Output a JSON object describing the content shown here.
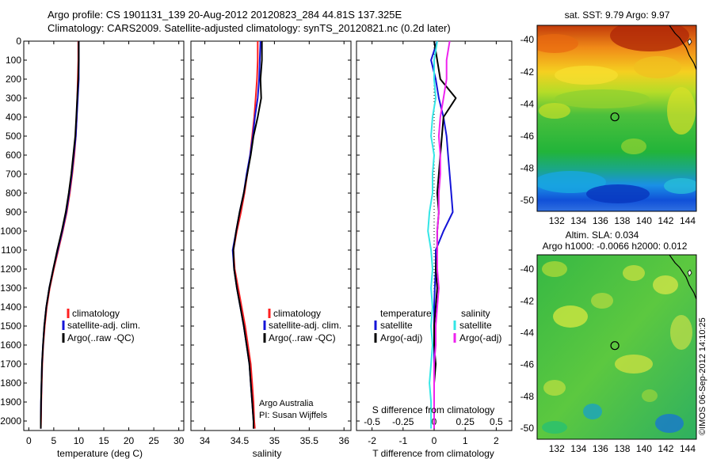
{
  "title_line1": "Argo profile: CS 1901131_139 20-Aug-2012 20120823_284 44.81S 137.325E",
  "title_line2": "Climatology: CARS2009. Satellite-adjusted climatology: synTS_20120821.nc (0.2d later)",
  "colors": {
    "clim": "#ff2020",
    "sat": "#1414d8",
    "argo": "#000000",
    "sal_sat": "#33e6e6",
    "sal_argo": "#ee22ee"
  },
  "chart_data": [
    {
      "type": "line",
      "title": "",
      "xlabel": "temperature (deg C)",
      "ylabel": "",
      "xlim": [
        -1,
        31
      ],
      "ylim": [
        2050,
        0
      ],
      "xticks": [
        "0",
        "5",
        "10",
        "15",
        "20",
        "25",
        "30"
      ],
      "xtick_values": [
        0,
        5,
        10,
        15,
        20,
        25,
        30
      ],
      "yticks": [
        "0",
        "100",
        "200",
        "300",
        "400",
        "500",
        "600",
        "700",
        "800",
        "900",
        "1000",
        "1100",
        "1200",
        "1300",
        "1400",
        "1500",
        "1600",
        "1700",
        "1800",
        "1900",
        "2000"
      ],
      "legend": [
        "climatology",
        "satellite-adj. clim.",
        "Argo(..raw -QC)"
      ],
      "series": [
        {
          "name": "climatology",
          "color_key": "clim",
          "x": [
            9.9,
            9.9,
            9.8,
            9.7,
            9.6,
            9.4,
            9.1,
            8.7,
            8.2,
            7.6,
            6.8,
            5.9,
            5.0,
            4.2,
            3.6,
            3.2,
            2.9,
            2.7,
            2.6,
            2.5,
            2.45,
            2.4
          ],
          "y": [
            0,
            100,
            200,
            300,
            400,
            500,
            600,
            700,
            800,
            900,
            1000,
            1100,
            1200,
            1300,
            1400,
            1500,
            1600,
            1700,
            1800,
            1900,
            2000,
            2040
          ]
        },
        {
          "name": "satellite-adj. clim.",
          "color_key": "sat",
          "x": [
            10.0,
            10.0,
            10.0,
            9.8,
            9.6,
            9.4,
            9.0,
            8.6,
            8.1,
            7.5,
            6.7,
            5.8,
            4.9,
            4.1,
            3.5,
            3.1,
            2.85,
            2.65,
            2.55,
            2.45,
            2.4,
            2.4
          ],
          "y": [
            0,
            100,
            200,
            300,
            400,
            500,
            600,
            700,
            800,
            900,
            1000,
            1100,
            1200,
            1300,
            1400,
            1500,
            1600,
            1700,
            1800,
            1900,
            2000,
            2040
          ]
        },
        {
          "name": "Argo(..raw -QC)",
          "color_key": "argo",
          "x": [
            10.0,
            10.0,
            9.9,
            9.7,
            9.5,
            9.3,
            8.9,
            8.5,
            8.0,
            7.4,
            6.6,
            5.7,
            4.9,
            4.1,
            3.5,
            3.1,
            2.85,
            2.65,
            2.55,
            2.45,
            2.4,
            2.4
          ],
          "y": [
            0,
            100,
            200,
            300,
            400,
            500,
            600,
            700,
            800,
            900,
            1000,
            1100,
            1200,
            1300,
            1400,
            1500,
            1600,
            1700,
            1800,
            1900,
            2000,
            2040
          ]
        }
      ]
    },
    {
      "type": "line",
      "title": "",
      "xlabel": "salinity",
      "ylabel": "",
      "xlim": [
        33.8,
        36.1
      ],
      "ylim": [
        2050,
        0
      ],
      "xticks": [
        "34",
        "34.5",
        "35",
        "35.5",
        "36"
      ],
      "xtick_values": [
        34,
        34.5,
        35,
        35.5,
        36
      ],
      "legend": [
        "climatology",
        "satellite-adj. clim.",
        "Argo(..raw -QC)"
      ],
      "annotation_line1": "Argo Australia",
      "annotation_line2": "PI: Susan Wijffels",
      "series": [
        {
          "name": "climatology",
          "color_key": "clim",
          "x": [
            34.76,
            34.76,
            34.75,
            34.73,
            34.71,
            34.68,
            34.65,
            34.61,
            34.57,
            34.52,
            34.46,
            34.41,
            34.43,
            34.48,
            34.53,
            34.58,
            34.62,
            34.66,
            34.68,
            34.7,
            34.71,
            34.72
          ],
          "y": [
            0,
            100,
            200,
            300,
            400,
            500,
            600,
            700,
            800,
            900,
            1000,
            1100,
            1200,
            1300,
            1400,
            1500,
            1600,
            1700,
            1800,
            1900,
            2000,
            2040
          ]
        },
        {
          "name": "satellite-adj. clim.",
          "color_key": "sat",
          "x": [
            34.8,
            34.79,
            34.78,
            34.76,
            34.72,
            34.69,
            34.65,
            34.6,
            34.56,
            34.5,
            34.45,
            34.4,
            34.42,
            34.46,
            34.51,
            34.56,
            34.6,
            34.64,
            34.66,
            34.68,
            34.7,
            34.7
          ],
          "y": [
            0,
            100,
            200,
            300,
            400,
            500,
            600,
            700,
            800,
            900,
            1000,
            1100,
            1200,
            1300,
            1400,
            1500,
            1600,
            1700,
            1800,
            1900,
            2000,
            2040
          ]
        },
        {
          "name": "Argo(..raw -QC)",
          "color_key": "argo",
          "x": [
            34.82,
            34.82,
            34.8,
            34.81,
            34.76,
            34.7,
            34.66,
            34.61,
            34.56,
            34.5,
            34.45,
            34.41,
            34.42,
            34.46,
            34.51,
            34.56,
            34.6,
            34.64,
            34.66,
            34.68,
            34.7,
            34.7
          ],
          "y": [
            0,
            100,
            200,
            300,
            400,
            500,
            600,
            700,
            800,
            900,
            1000,
            1100,
            1200,
            1300,
            1400,
            1500,
            1600,
            1700,
            1800,
            1900,
            2000,
            2040
          ]
        }
      ]
    },
    {
      "type": "line",
      "title": "",
      "xlabel": "T difference from climatology",
      "top_xlabel": "S difference from climatology",
      "xlim": [
        -2.5,
        2.5
      ],
      "ylim": [
        2050,
        0
      ],
      "xticks": [
        "-2",
        "-1",
        "0",
        "1",
        "2"
      ],
      "xtick_values": [
        -2,
        -1,
        0,
        1,
        2
      ],
      "top_xticks": [
        "-0.5",
        "-0.25",
        "0",
        "0.25",
        "0.5"
      ],
      "top_xtick_values": [
        -2,
        -1,
        0,
        1,
        2
      ],
      "legend_temp_header": "temperature",
      "legend_sal_header": "salinity",
      "legend": [
        "satellite",
        "Argo(-adj)",
        "satellite",
        "Argo(-adj)"
      ],
      "series": [
        {
          "name": "satellite",
          "group": "temperature",
          "color_key": "sat",
          "x": [
            0.1,
            -0.1,
            0.05,
            0.15,
            0.3,
            0.4,
            0.45,
            0.5,
            0.55,
            0.6,
            0.3,
            0.05,
            0.05,
            0.02,
            0.0,
            0.0,
            0.0,
            0.0,
            0.0,
            0.0,
            0.0
          ],
          "y": [
            0,
            100,
            200,
            300,
            400,
            500,
            600,
            700,
            800,
            900,
            1000,
            1100,
            1200,
            1300,
            1400,
            1500,
            1600,
            1700,
            1800,
            1900,
            2040
          ]
        },
        {
          "name": "Argo(-adj)",
          "group": "temperature",
          "color_key": "argo",
          "x": [
            0.0,
            0.1,
            0.2,
            0.7,
            0.3,
            0.25,
            0.2,
            0.15,
            0.1,
            0.15,
            0.1,
            0.1,
            0.05,
            0.1,
            0.05,
            0.0,
            0.0,
            0.05,
            0.0,
            0.0,
            0.0
          ],
          "y": [
            0,
            100,
            200,
            300,
            400,
            500,
            600,
            700,
            800,
            900,
            1000,
            1100,
            1200,
            1300,
            1400,
            1500,
            1600,
            1700,
            1800,
            1900,
            2040
          ]
        },
        {
          "name": "satellite",
          "group": "salinity",
          "color_key": "sal_sat",
          "x": [
            0.1,
            0.0,
            0.0,
            0.05,
            -0.05,
            -0.1,
            0.0,
            -0.05,
            -0.05,
            -0.15,
            -0.2,
            -0.1,
            -0.05,
            -0.1,
            -0.05,
            -0.1,
            -0.05,
            -0.1,
            -0.15,
            -0.1,
            -0.1
          ],
          "y": [
            0,
            100,
            200,
            300,
            400,
            500,
            600,
            700,
            800,
            900,
            1000,
            1100,
            1200,
            1300,
            1400,
            1500,
            1600,
            1700,
            1800,
            1900,
            2040
          ]
        },
        {
          "name": "Argo(-adj)",
          "group": "salinity",
          "color_key": "sal_argo",
          "x": [
            0.5,
            0.4,
            0.4,
            0.3,
            0.2,
            0.15,
            0.2,
            0.2,
            0.15,
            0.15,
            0.1,
            0.1,
            0.1,
            0.15,
            0.1,
            0.05,
            0.05,
            0.0,
            0.0,
            0.0,
            0.0
          ],
          "y": [
            0,
            100,
            200,
            300,
            400,
            500,
            600,
            700,
            800,
            900,
            1000,
            1100,
            1200,
            1300,
            1400,
            1500,
            1600,
            1700,
            1800,
            1900,
            2040
          ]
        }
      ]
    },
    {
      "type": "heatmap",
      "title": "sat. SST: 9.79 Argo: 9.97",
      "xticks": [
        "132",
        "134",
        "136",
        "138",
        "140",
        "142",
        "144"
      ],
      "xtick_values": [
        132,
        134,
        136,
        138,
        140,
        142,
        144
      ],
      "yticks": [
        "-40",
        "-42",
        "-44",
        "-46",
        "-48",
        "-50"
      ],
      "ytick_values": [
        -40,
        -42,
        -44,
        -46,
        -48,
        -50
      ],
      "xlim": [
        130.2,
        144.8
      ],
      "ylim": [
        -50.7,
        -39.1
      ],
      "marker": {
        "lon": 137.325,
        "lat": -44.81
      }
    },
    {
      "type": "heatmap",
      "title_line1": "Altim. SLA: 0.034",
      "title_line2": "Argo h1000: -0.0066 h2000: 0.012",
      "xticks": [
        "132",
        "134",
        "136",
        "138",
        "140",
        "142",
        "144"
      ],
      "xtick_values": [
        132,
        134,
        136,
        138,
        140,
        142,
        144
      ],
      "yticks": [
        "-40",
        "-42",
        "-44",
        "-46",
        "-48",
        "-50"
      ],
      "ytick_values": [
        -40,
        -42,
        -44,
        -46,
        -48,
        -50
      ],
      "xlim": [
        130.2,
        144.8
      ],
      "ylim": [
        -50.7,
        -39.1
      ],
      "marker": {
        "lon": 137.325,
        "lat": -44.81
      }
    }
  ],
  "footer_side": "©IMOS 06-Sep-2012 14:10:25"
}
